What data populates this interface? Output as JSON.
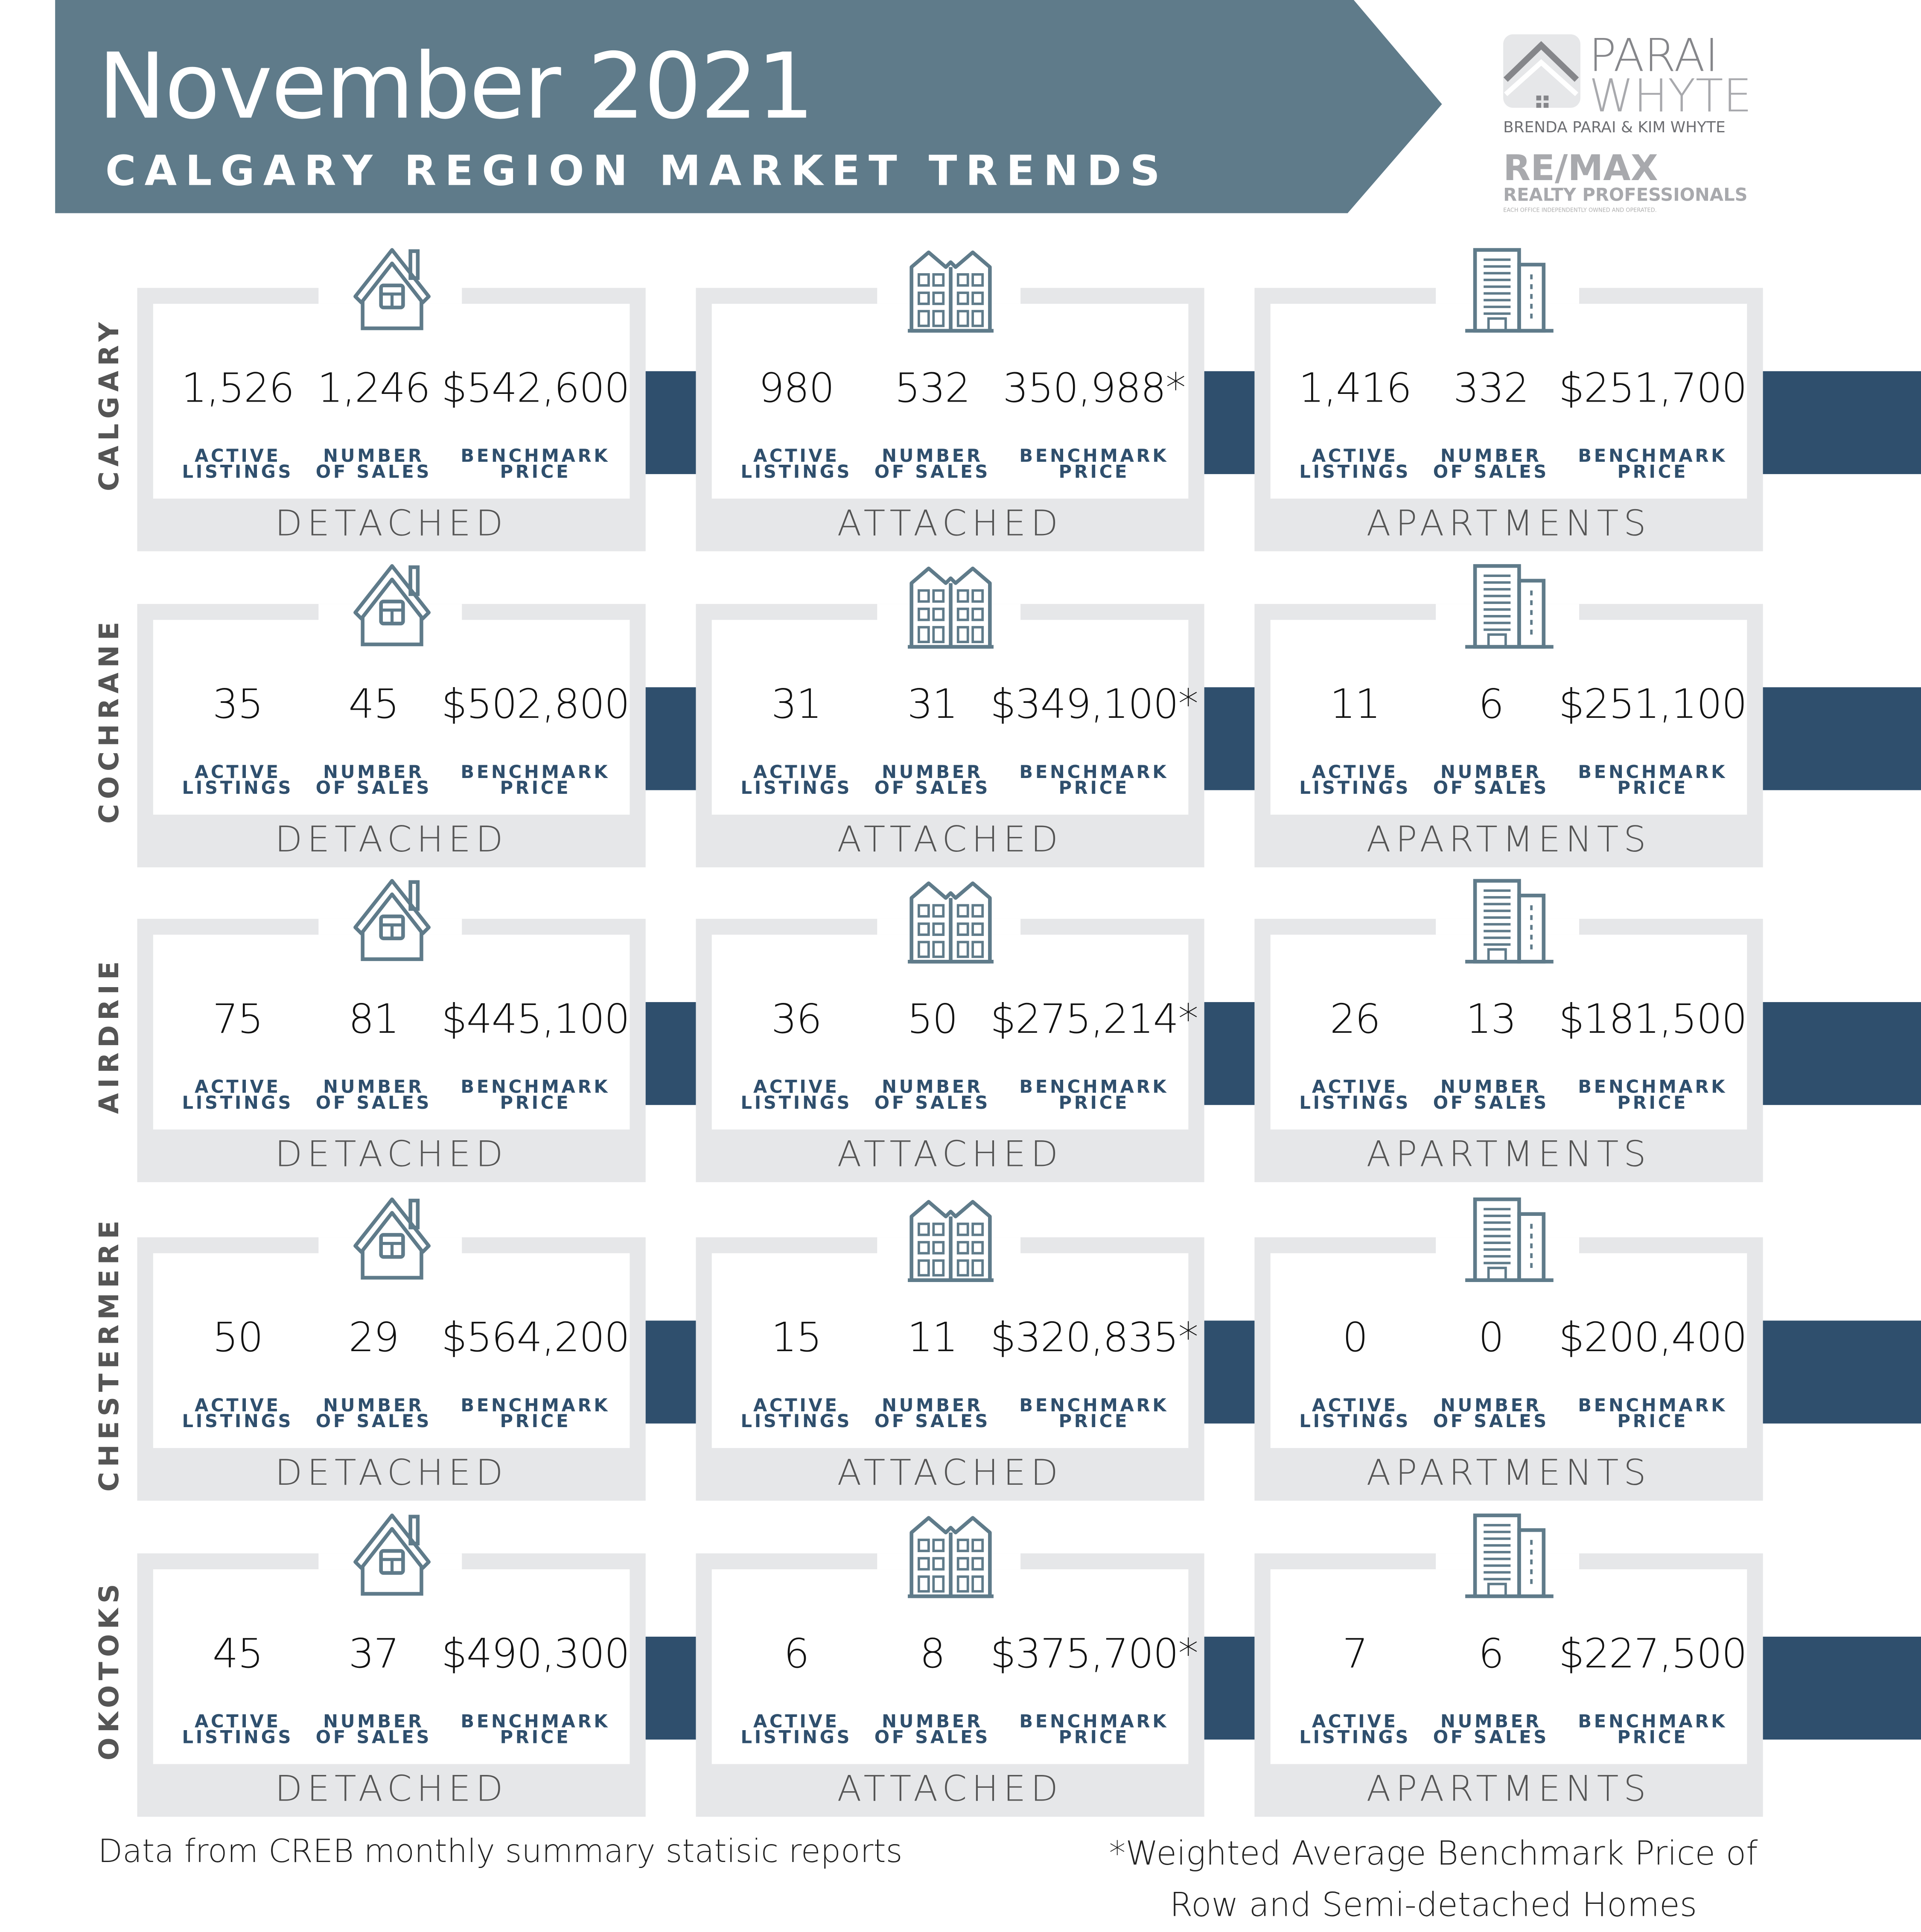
{
  "header": {
    "title": "November 2021",
    "subtitle": "CALGARY REGION MARKET TRENDS",
    "banner_color": "#5f7b8a"
  },
  "logo": {
    "brand_line1": "PARAI",
    "brand_line2": "WHYTE",
    "agents": "BRENDA PARAI & KIM WHYTE",
    "brokerage": "RE/MAX",
    "brokerage_sub": "REALTY PROFESSIONALS",
    "disclaimer": "EACH OFFICE INDEPENDENTLY OWNED AND OPERATED."
  },
  "colors": {
    "accent": "#2f4f6d",
    "icon": "#5f7b8a",
    "frame": "#e6e7e9"
  },
  "labels": {
    "active": "ACTIVE\nLISTINGS",
    "sales": "NUMBER\nOF SALES",
    "price": "BENCHMARK\nPRICE"
  },
  "types": [
    {
      "name": "DETACHED",
      "icon": "house-icon"
    },
    {
      "name": "ATTACHED",
      "icon": "townhouse-icon"
    },
    {
      "name": "APARTMENTS",
      "icon": "apartment-building-icon"
    }
  ],
  "regions": [
    {
      "name": "CALGARY",
      "cells": [
        {
          "active": "1,526",
          "sales": "1,246",
          "price": "$542,600"
        },
        {
          "active": "980",
          "sales": "532",
          "price": "350,988*"
        },
        {
          "active": "1,416",
          "sales": "332",
          "price": "$251,700"
        }
      ]
    },
    {
      "name": "COCHRANE",
      "cells": [
        {
          "active": "35",
          "sales": "45",
          "price": "$502,800"
        },
        {
          "active": "31",
          "sales": "31",
          "price": "$349,100*"
        },
        {
          "active": "11",
          "sales": "6",
          "price": "$251,100"
        }
      ]
    },
    {
      "name": "AIRDRIE",
      "cells": [
        {
          "active": "75",
          "sales": "81",
          "price": "$445,100"
        },
        {
          "active": "36",
          "sales": "50",
          "price": "$275,214*"
        },
        {
          "active": "26",
          "sales": "13",
          "price": "$181,500"
        }
      ]
    },
    {
      "name": "CHESTERMERE",
      "cells": [
        {
          "active": "50",
          "sales": "29",
          "price": "$564,200"
        },
        {
          "active": "15",
          "sales": "11",
          "price": "$320,835*"
        },
        {
          "active": "0",
          "sales": "0",
          "price": "$200,400"
        }
      ]
    },
    {
      "name": "OKOTOKS",
      "cells": [
        {
          "active": "45",
          "sales": "37",
          "price": "$490,300"
        },
        {
          "active": "6",
          "sales": "8",
          "price": "$375,700*"
        },
        {
          "active": "7",
          "sales": "6",
          "price": "$227,500"
        }
      ]
    }
  ],
  "footer": {
    "source": "Data from CREB monthly summary statisic reports",
    "footnote_line1": "*Weighted Average Benchmark Price of",
    "footnote_line2": "Row and Semi-detached  Homes"
  }
}
